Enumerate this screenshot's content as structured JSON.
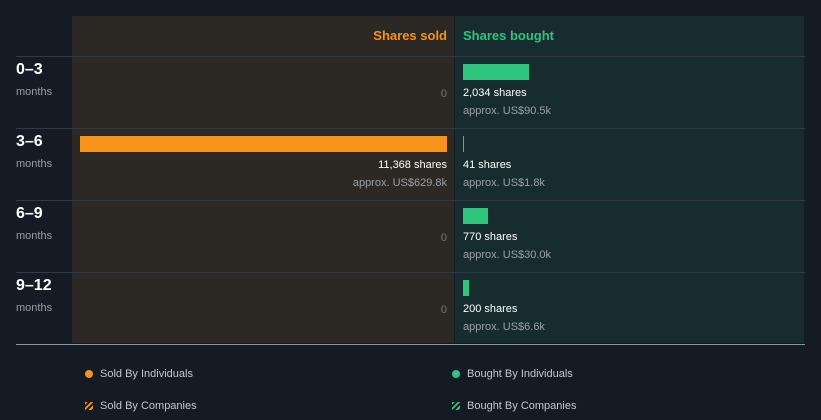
{
  "chart_data": {
    "type": "bar",
    "categories": [
      "0–3",
      "3–6",
      "6–9",
      "9–12"
    ],
    "category_sublabel": "months",
    "series": [
      {
        "name": "Shares sold",
        "values": [
          0,
          11368,
          0,
          0
        ],
        "shares_labels": [
          "",
          "11,368 shares",
          "",
          ""
        ],
        "approx_labels": [
          "",
          "approx. US$629.8k",
          "",
          ""
        ],
        "zero_labels": [
          "0",
          "",
          "0",
          "0"
        ]
      },
      {
        "name": "Shares bought",
        "values": [
          2034,
          41,
          770,
          200
        ],
        "shares_labels": [
          "2,034 shares",
          "41 shares",
          "770 shares",
          "200 shares"
        ],
        "approx_labels": [
          "approx. US$90.5k",
          "approx. US$1.8k",
          "approx. US$30.0k",
          "approx. US$6.6k"
        ]
      }
    ],
    "legend": [
      {
        "label": "Sold By Individuals",
        "color": "#f7931a",
        "marker": "dot"
      },
      {
        "label": "Bought By Individuals",
        "color": "#2fc57f",
        "marker": "dot"
      },
      {
        "label": "Sold By Companies",
        "color": "#f7931a",
        "marker": "hatch"
      },
      {
        "label": "Bought By Companies",
        "color": "#2fc57f",
        "marker": "hatch"
      }
    ],
    "legend_position": "bottom",
    "colors": {
      "sold": "#f7931a",
      "bought": "#2fc57f"
    }
  }
}
